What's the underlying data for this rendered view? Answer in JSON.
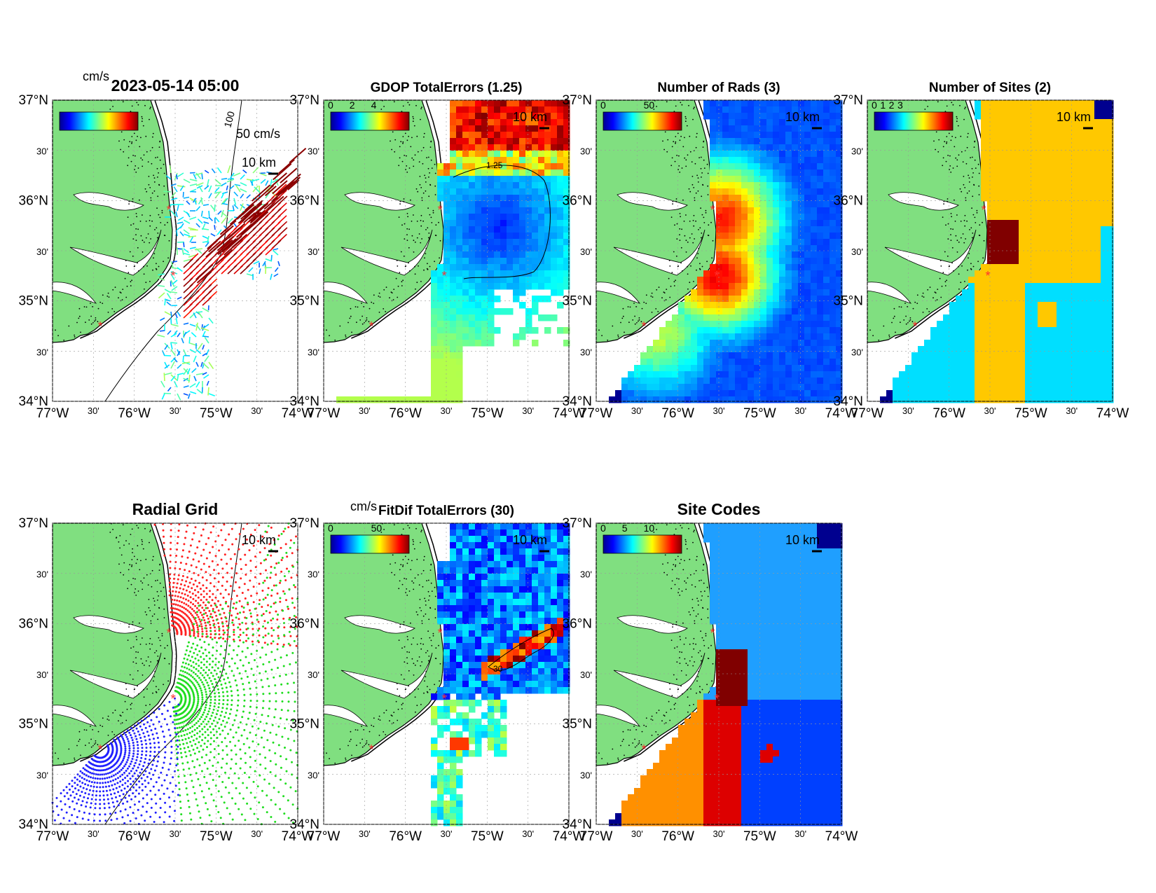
{
  "figure": {
    "main_title": "2023-05-14 05:00",
    "unit_label": "cm/s",
    "scale_bar": "10 km",
    "vector_scale": "50 cm/s",
    "contour_100": "100",
    "axes": {
      "lat_ticks": [
        "37°N",
        "30'",
        "36°N",
        "30'",
        "35°N",
        "30'",
        "34°N"
      ],
      "lon_ticks": [
        "77°W",
        "30'",
        "76°W",
        "30'",
        "75°W",
        "30'",
        "74°W"
      ]
    }
  },
  "panels": [
    {
      "id": "velocity",
      "title": "2023-05-14 05:00",
      "cbar_unit": "cm/s",
      "cbar_ticks": []
    },
    {
      "id": "gdop",
      "title": "GDOP TotalErrors (1.25)",
      "cbar_ticks": [
        "0",
        "2",
        "4"
      ],
      "contour": "1.25"
    },
    {
      "id": "nrads",
      "title": "Number of Rads (3)",
      "cbar_ticks": [
        "0",
        "50"
      ],
      "contour": "3"
    },
    {
      "id": "nsites",
      "title": "Number of Sites (2)",
      "cbar_ticks": [
        "0",
        "1",
        "2",
        "3"
      ],
      "contour": "2"
    },
    {
      "id": "radial",
      "title": "Radial Grid"
    },
    {
      "id": "fitdif",
      "title": "FitDif TotalErrors (30)",
      "cbar_unit": "cm/s",
      "cbar_ticks": [
        "0",
        "50"
      ],
      "contour": "30"
    },
    {
      "id": "sitecodes",
      "title": "Site Codes",
      "cbar_ticks": [
        "0",
        "5",
        "10"
      ]
    }
  ],
  "colors": {
    "land": "#80df80",
    "jet": [
      "#00008f",
      "#0000ff",
      "#0080ff",
      "#00ffff",
      "#80ff80",
      "#ffff00",
      "#ff8000",
      "#ff0000",
      "#800000"
    ],
    "sites": "#ff3030",
    "radial_site_colors": [
      "#ff2020",
      "#20dd20",
      "#2020ff"
    ]
  }
}
